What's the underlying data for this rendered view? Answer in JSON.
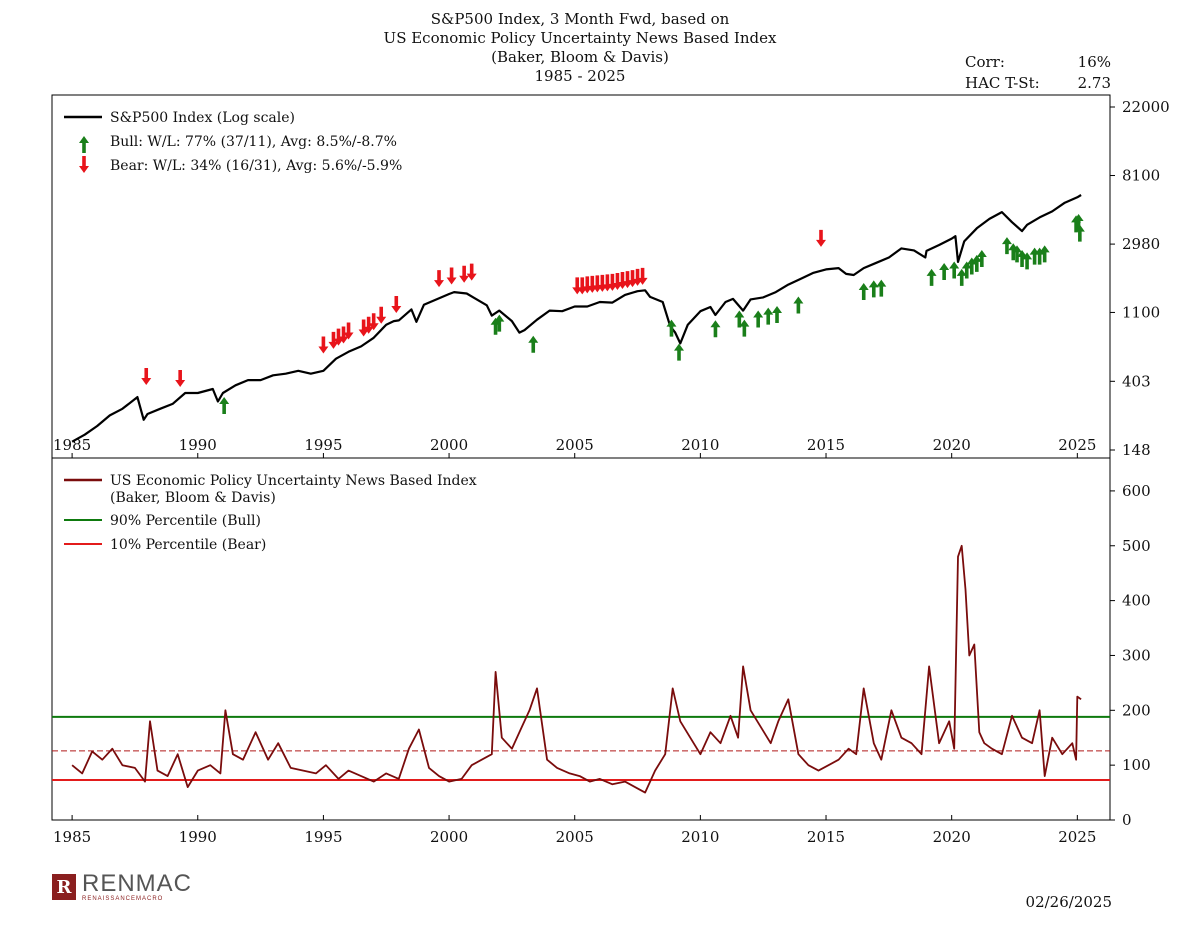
{
  "title_lines": [
    "S&P500 Index, 3 Month Fwd, based on",
    "US Economic Policy Uncertainty News Based Index",
    "(Baker, Bloom & Davis)",
    "1985 - 2025"
  ],
  "stats": {
    "corr_label": "Corr:",
    "corr_value": "16%",
    "tstat_label": "HAC T-St:",
    "tstat_value": "2.73"
  },
  "footer": {
    "date": "02/26/2025",
    "logo_word": "RENMAC",
    "logo_sub": "RENAISSANCEMACRO",
    "logo_letter": "R"
  },
  "colors": {
    "spx": "#000000",
    "bull": "#1a7f1a",
    "bear": "#e8141b",
    "epu": "#7a0c0c",
    "bull_line": "#0e7a0e",
    "bear_line": "#e31b1b",
    "mid_line": "#b11a1a"
  },
  "chart_data": [
    {
      "type": "line",
      "scale": "log",
      "xlim": [
        1984.2,
        2026.3
      ],
      "ylim": [
        148,
        22000
      ],
      "x_ticks": [
        1985,
        1990,
        1995,
        2000,
        2005,
        2010,
        2015,
        2020,
        2025
      ],
      "y_ticks": [
        148,
        403,
        1100,
        2980,
        8100,
        22000
      ],
      "legend": {
        "spx": "S&P500 Index (Log scale)",
        "bull": "Bull:   W/L: 77% (37/11), Avg: 8.5%/-8.7%",
        "bear": "Bear:   W/L: 34% (16/31), Avg: 5.6%/-5.9%"
      },
      "series": [
        {
          "name": "S&P500 Index (Log scale)",
          "x": [
            1985.0,
            1985.5,
            1986.0,
            1986.5,
            1987.0,
            1987.6,
            1987.85,
            1988.0,
            1988.5,
            1989.0,
            1989.5,
            1990.0,
            1990.6,
            1990.8,
            1991.0,
            1991.5,
            1992.0,
            1992.5,
            1993.0,
            1993.5,
            1994.0,
            1994.5,
            1995.0,
            1995.5,
            1996.0,
            1996.5,
            1997.0,
            1997.5,
            1997.8,
            1998.0,
            1998.5,
            1998.7,
            1999.0,
            1999.5,
            2000.0,
            2000.2,
            2000.7,
            2001.0,
            2001.5,
            2001.7,
            2002.0,
            2002.5,
            2002.8,
            2003.0,
            2003.5,
            2004.0,
            2004.5,
            2005.0,
            2005.5,
            2006.0,
            2006.5,
            2007.0,
            2007.5,
            2007.8,
            2008.0,
            2008.5,
            2008.8,
            2009.0,
            2009.2,
            2009.5,
            2010.0,
            2010.4,
            2010.6,
            2011.0,
            2011.3,
            2011.7,
            2012.0,
            2012.5,
            2013.0,
            2013.5,
            2014.0,
            2014.5,
            2015.0,
            2015.5,
            2015.8,
            2016.1,
            2016.5,
            2017.0,
            2017.5,
            2018.0,
            2018.5,
            2018.95,
            2019.0,
            2019.5,
            2020.0,
            2020.15,
            2020.25,
            2020.5,
            2021.0,
            2021.5,
            2022.0,
            2022.4,
            2022.8,
            2023.0,
            2023.5,
            2024.0,
            2024.5,
            2025.0,
            2025.15
          ],
          "values": [
            167,
            185,
            210,
            245,
            270,
            320,
            230,
            250,
            270,
            290,
            340,
            340,
            360,
            300,
            340,
            380,
            410,
            410,
            440,
            450,
            470,
            450,
            470,
            560,
            620,
            670,
            760,
            920,
            970,
            980,
            1150,
            960,
            1230,
            1330,
            1440,
            1480,
            1450,
            1360,
            1220,
            1050,
            1130,
            970,
            820,
            850,
            990,
            1130,
            1120,
            1200,
            1200,
            1280,
            1270,
            1420,
            1500,
            1520,
            1380,
            1280,
            900,
            820,
            700,
            920,
            1120,
            1190,
            1060,
            1280,
            1340,
            1130,
            1330,
            1370,
            1480,
            1650,
            1800,
            1960,
            2060,
            2100,
            1930,
            1900,
            2100,
            2270,
            2450,
            2800,
            2720,
            2450,
            2700,
            2940,
            3230,
            3350,
            2300,
            3100,
            3750,
            4300,
            4750,
            4100,
            3600,
            3950,
            4400,
            4800,
            5450,
            5900,
            6100
          ]
        }
      ],
      "bull_signals": [
        {
          "x": 1991.05,
          "y": 340
        },
        {
          "x": 2001.85,
          "y": 1080
        },
        {
          "x": 2002.0,
          "y": 1130
        },
        {
          "x": 2003.35,
          "y": 830
        },
        {
          "x": 2008.85,
          "y": 1050
        },
        {
          "x": 2009.15,
          "y": 740
        },
        {
          "x": 2010.6,
          "y": 1040
        },
        {
          "x": 2011.55,
          "y": 1200
        },
        {
          "x": 2011.75,
          "y": 1050
        },
        {
          "x": 2012.3,
          "y": 1200
        },
        {
          "x": 2012.7,
          "y": 1250
        },
        {
          "x": 2013.05,
          "y": 1280
        },
        {
          "x": 2013.9,
          "y": 1470
        },
        {
          "x": 2016.5,
          "y": 1790
        },
        {
          "x": 2016.9,
          "y": 1860
        },
        {
          "x": 2017.2,
          "y": 1880
        },
        {
          "x": 2019.2,
          "y": 2200
        },
        {
          "x": 2019.7,
          "y": 2400
        },
        {
          "x": 2020.1,
          "y": 2450
        },
        {
          "x": 2020.4,
          "y": 2200
        },
        {
          "x": 2020.6,
          "y": 2450
        },
        {
          "x": 2020.8,
          "y": 2600
        },
        {
          "x": 2021.0,
          "y": 2700
        },
        {
          "x": 2021.2,
          "y": 2900
        },
        {
          "x": 2022.2,
          "y": 3500
        },
        {
          "x": 2022.45,
          "y": 3200
        },
        {
          "x": 2022.6,
          "y": 3100
        },
        {
          "x": 2022.8,
          "y": 2900
        },
        {
          "x": 2023.0,
          "y": 2800
        },
        {
          "x": 2023.3,
          "y": 3000
        },
        {
          "x": 2023.5,
          "y": 3000
        },
        {
          "x": 2023.7,
          "y": 3100
        },
        {
          "x": 2024.95,
          "y": 4800
        },
        {
          "x": 2025.05,
          "y": 4900
        },
        {
          "x": 2025.1,
          "y": 4200
        }
      ],
      "bear_signals": [
        {
          "x": 1987.95,
          "y": 360
        },
        {
          "x": 1989.3,
          "y": 350
        },
        {
          "x": 1995.0,
          "y": 570
        },
        {
          "x": 1995.4,
          "y": 610
        },
        {
          "x": 1995.6,
          "y": 640
        },
        {
          "x": 1995.8,
          "y": 660
        },
        {
          "x": 1996.0,
          "y": 700
        },
        {
          "x": 1996.6,
          "y": 730
        },
        {
          "x": 1996.8,
          "y": 760
        },
        {
          "x": 1997.0,
          "y": 800
        },
        {
          "x": 1997.3,
          "y": 880
        },
        {
          "x": 1997.9,
          "y": 1030
        },
        {
          "x": 1999.6,
          "y": 1500
        },
        {
          "x": 2000.1,
          "y": 1560
        },
        {
          "x": 2000.6,
          "y": 1600
        },
        {
          "x": 2000.9,
          "y": 1650
        },
        {
          "x": 2005.1,
          "y": 1350
        },
        {
          "x": 2005.3,
          "y": 1350
        },
        {
          "x": 2005.5,
          "y": 1370
        },
        {
          "x": 2005.7,
          "y": 1380
        },
        {
          "x": 2005.9,
          "y": 1390
        },
        {
          "x": 2006.1,
          "y": 1400
        },
        {
          "x": 2006.3,
          "y": 1410
        },
        {
          "x": 2006.5,
          "y": 1420
        },
        {
          "x": 2006.7,
          "y": 1440
        },
        {
          "x": 2006.9,
          "y": 1460
        },
        {
          "x": 2007.1,
          "y": 1480
        },
        {
          "x": 2007.3,
          "y": 1500
        },
        {
          "x": 2007.5,
          "y": 1530
        },
        {
          "x": 2007.7,
          "y": 1550
        },
        {
          "x": 2014.8,
          "y": 2700
        }
      ]
    },
    {
      "type": "line",
      "xlim": [
        1984.2,
        2026.3
      ],
      "ylim": [
        0,
        660
      ],
      "x_ticks": [
        1985,
        1990,
        1995,
        2000,
        2005,
        2010,
        2015,
        2020,
        2025
      ],
      "y_ticks": [
        0,
        100,
        200,
        300,
        400,
        500,
        600
      ],
      "legend": {
        "epu_line1": "US Economic Policy Uncertainty News Based Index",
        "epu_line2": "(Baker, Bloom & Davis)",
        "bull": "90% Percentile (Bull)",
        "bear": "10% Percentile (Bear)"
      },
      "hlines": {
        "bull_90pct": 188,
        "median": 126,
        "bear_10pct": 73
      },
      "series": [
        {
          "name": "US Economic Policy Uncertainty News Based Index",
          "x": [
            1985.0,
            1985.4,
            1985.8,
            1986.2,
            1986.6,
            1987.0,
            1987.5,
            1987.9,
            1988.1,
            1988.4,
            1988.8,
            1989.2,
            1989.6,
            1990.0,
            1990.5,
            1990.9,
            1991.1,
            1991.4,
            1991.8,
            1992.3,
            1992.8,
            1993.2,
            1993.7,
            1994.2,
            1994.7,
            1995.1,
            1995.6,
            1996.0,
            1996.5,
            1997.0,
            1997.5,
            1998.0,
            1998.4,
            1998.8,
            1999.2,
            1999.6,
            2000.0,
            2000.5,
            2000.9,
            2001.3,
            2001.7,
            2001.85,
            2002.1,
            2002.5,
            2002.9,
            2003.2,
            2003.5,
            2003.9,
            2004.3,
            2004.8,
            2005.2,
            2005.6,
            2006.0,
            2006.5,
            2007.0,
            2007.4,
            2007.8,
            2008.2,
            2008.6,
            2008.9,
            2009.2,
            2009.6,
            2010.0,
            2010.4,
            2010.8,
            2011.2,
            2011.5,
            2011.7,
            2012.0,
            2012.4,
            2012.8,
            2013.1,
            2013.5,
            2013.9,
            2014.3,
            2014.7,
            2015.1,
            2015.5,
            2015.9,
            2016.2,
            2016.5,
            2016.9,
            2017.2,
            2017.6,
            2018.0,
            2018.4,
            2018.8,
            2019.1,
            2019.5,
            2019.9,
            2020.1,
            2020.25,
            2020.4,
            2020.55,
            2020.7,
            2020.9,
            2021.1,
            2021.3,
            2021.6,
            2022.0,
            2022.4,
            2022.8,
            2023.2,
            2023.5,
            2023.7,
            2024.0,
            2024.4,
            2024.8,
            2024.95,
            2025.0,
            2025.15
          ],
          "values": [
            100,
            85,
            125,
            110,
            130,
            100,
            95,
            70,
            180,
            90,
            80,
            120,
            60,
            90,
            100,
            85,
            200,
            120,
            110,
            160,
            110,
            140,
            95,
            90,
            85,
            100,
            75,
            90,
            80,
            70,
            85,
            75,
            130,
            165,
            95,
            80,
            70,
            75,
            100,
            110,
            120,
            270,
            150,
            130,
            170,
            200,
            240,
            110,
            95,
            85,
            80,
            70,
            75,
            65,
            70,
            60,
            50,
            90,
            120,
            240,
            180,
            150,
            120,
            160,
            140,
            190,
            150,
            280,
            200,
            170,
            140,
            180,
            220,
            120,
            100,
            90,
            100,
            110,
            130,
            120,
            240,
            140,
            110,
            200,
            150,
            140,
            120,
            280,
            140,
            180,
            130,
            480,
            500,
            420,
            300,
            320,
            160,
            140,
            130,
            120,
            190,
            150,
            140,
            200,
            80,
            150,
            120,
            140,
            110,
            225,
            220
          ]
        }
      ]
    }
  ]
}
